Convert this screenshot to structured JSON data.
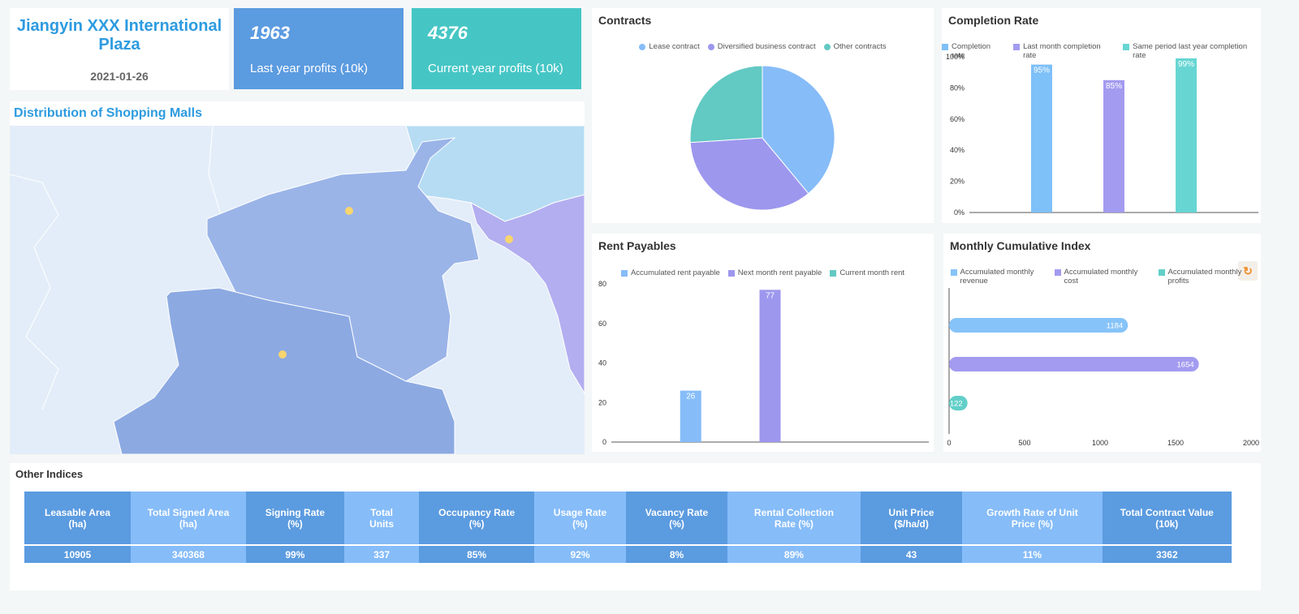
{
  "header": {
    "title": "Jiangyin XXX International Plaza",
    "date": "2021-01-26"
  },
  "kpis": [
    {
      "value": 1963,
      "label": "Last year profits (10k)"
    },
    {
      "value": 4376,
      "label": "Current year profits (10k)"
    }
  ],
  "map": {
    "title": "Distribution of Shopping Malls"
  },
  "chart_data": [
    {
      "type": "pie",
      "title": "Contracts",
      "categories": [
        "Lease contract",
        "Diversified business contract",
        "Other contracts"
      ],
      "values": [
        39,
        35,
        26
      ],
      "colors": [
        "#86bcf8",
        "#9d97ee",
        "#62c9c3"
      ]
    },
    {
      "type": "bar",
      "title": "Completion Rate",
      "series": [
        {
          "name": "Completion rate",
          "color": "#7ec0f8",
          "values": [
            95
          ],
          "value_labels": [
            "95%"
          ]
        },
        {
          "name": "Last month completion rate",
          "color": "#a39bf0",
          "values": [
            85
          ],
          "value_labels": [
            "85%"
          ]
        },
        {
          "name": "Same period last year completion rate",
          "color": "#67d6d3",
          "values": [
            99
          ],
          "value_labels": [
            "99%"
          ]
        }
      ],
      "ylim": [
        0,
        100
      ],
      "yticks": [
        {
          "value": 0,
          "label": "0%"
        },
        {
          "value": 20,
          "label": "20%"
        },
        {
          "value": 40,
          "label": "40%"
        },
        {
          "value": 60,
          "label": "60%"
        },
        {
          "value": 80,
          "label": "80%"
        },
        {
          "value": 100,
          "label": "100%"
        }
      ]
    },
    {
      "type": "bar",
      "title": "Rent Payables",
      "series": [
        {
          "name": "Accumulated rent payable",
          "color": "#86bcf8",
          "values": [
            26
          ]
        },
        {
          "name": "Next month rent payable",
          "color": "#9d97ee",
          "values": [
            77
          ]
        },
        {
          "name": "Current month rent",
          "color": "#62c9c3",
          "values": [
            null
          ]
        }
      ],
      "ylim": [
        0,
        80
      ],
      "yticks": [
        0,
        20,
        40,
        60,
        80
      ]
    },
    {
      "type": "bar",
      "horizontal": true,
      "title": "Monthly Cumulative Index",
      "series": [
        {
          "name": "Accumulated monthly revenue",
          "color": "#86c3f8",
          "values": [
            1184
          ]
        },
        {
          "name": "Accumulated monthly cost",
          "color": "#a39bf0",
          "values": [
            1654
          ]
        },
        {
          "name": "Accumulated monthly profits",
          "color": "#62cfc8",
          "values": [
            122
          ]
        }
      ],
      "xlim": [
        0,
        2000
      ],
      "xticks": [
        0,
        500,
        1000,
        1500,
        2000
      ]
    }
  ],
  "table": {
    "title": "Other Indices",
    "headers": [
      "Leasable Area (ha)",
      "Total Signed Area (ha)",
      "Signing Rate (%)",
      "Total Units",
      "Occupancy Rate (%)",
      "Usage Rate (%)",
      "Vacancy Rate (%)",
      "Rental Collection Rate (%)",
      "Unit Price ($/ha/d)",
      "Growth Rate of Unit Price (%)",
      "Total Contract Value (10k)"
    ],
    "rows": [
      [
        "10905",
        "340368",
        "99%",
        "337",
        "85%",
        "92%",
        "8%",
        "89%",
        "43",
        "11%",
        "3362"
      ]
    ]
  }
}
